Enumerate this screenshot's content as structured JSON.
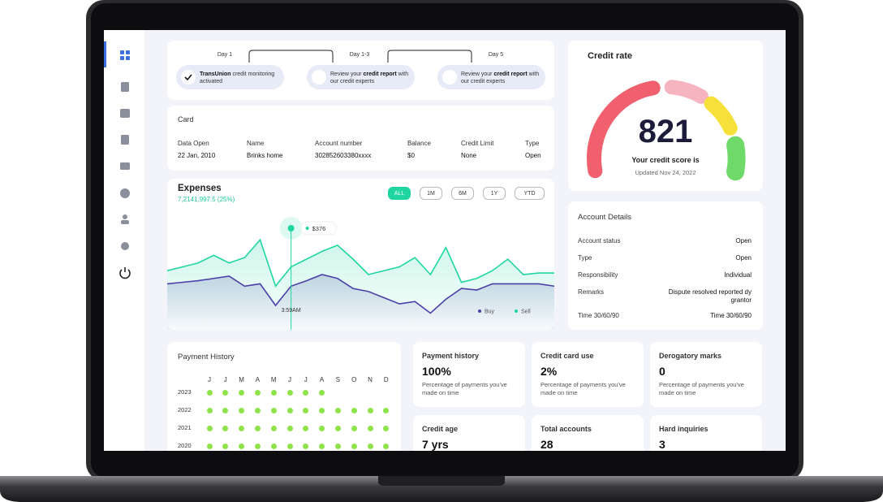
{
  "steps": {
    "days": [
      "Day 1",
      "Day 1-3",
      "Day 5"
    ],
    "items": [
      [
        {
          "text": "TransUnion",
          "bold": true
        },
        {
          "text": " credit monitoring activated"
        }
      ],
      [
        {
          "text": "Review your "
        },
        {
          "text": "credit report",
          "bold": true
        },
        {
          "text": " with our credit experts"
        }
      ],
      [
        {
          "text": "Review your "
        },
        {
          "text": "credit report",
          "bold": true
        },
        {
          "text": " with our credit experts"
        }
      ]
    ]
  },
  "card": {
    "title": "Card",
    "columns": [
      {
        "label": "Data Open",
        "value": "22 Jan, 2010"
      },
      {
        "label": "Name",
        "value": "Brinks home"
      },
      {
        "label": "Account number",
        "value": "302852603380xxxx"
      },
      {
        "label": "Balance",
        "value": "$0"
      },
      {
        "label": "Credit Limit",
        "value": "None"
      },
      {
        "label": "Type",
        "value": "Open"
      }
    ]
  },
  "expenses": {
    "title": "Expenses",
    "subtitle": "7,2141,997.5 (25%)",
    "buttons": [
      "ALL",
      "1M",
      "6M",
      "1Y",
      "YTD"
    ],
    "tooltip_value": "$376",
    "tooltip_time": "3:59AM",
    "series": [
      {
        "name": "Buy",
        "color": "#4b3fa8",
        "values": [
          48,
          50,
          52,
          55,
          58,
          45,
          48,
          20,
          45,
          52,
          60,
          55,
          42,
          38,
          30,
          22,
          25,
          10,
          28,
          42,
          40,
          48,
          48,
          48,
          48,
          45
        ]
      },
      {
        "name": "Sell",
        "color": "#1fd6a0",
        "values": [
          65,
          70,
          75,
          85,
          75,
          82,
          105,
          45,
          70,
          80,
          90,
          98,
          80,
          60,
          65,
          70,
          82,
          60,
          95,
          50,
          55,
          65,
          80,
          60,
          62,
          62
        ]
      }
    ]
  },
  "credit": {
    "title": "Credit rate",
    "score": "821",
    "caption": "Your credit score is",
    "updated": "Updated Nov 24, 2022"
  },
  "account": {
    "title": "Account Details",
    "rows": [
      {
        "label": "Account status",
        "value": "Open"
      },
      {
        "label": "Type",
        "value": "Open"
      },
      {
        "label": "Responsibility",
        "value": "Individual"
      },
      {
        "label": "Remarks",
        "value": "Dispute resolved reported dy grantor"
      },
      {
        "label": "Time 30/60/90",
        "value": "Time 30/60/90"
      }
    ]
  },
  "payment_history": {
    "title": "Payment History",
    "months": [
      "J",
      "J",
      "M",
      "A",
      "M",
      "J",
      "J",
      "A",
      "S",
      "O",
      "N",
      "D"
    ],
    "rows": [
      {
        "year": "2023",
        "paid": 8
      },
      {
        "year": "2022",
        "paid": 12
      },
      {
        "year": "2021",
        "paid": 12
      },
      {
        "year": "2020",
        "paid": 12
      }
    ]
  },
  "tiles": [
    {
      "title": "Payment history",
      "value": "100%",
      "description": "Percentage of payments you've made on time"
    },
    {
      "title": "Credit card use",
      "value": "2%",
      "description": "Percentage of payments you've made on time"
    },
    {
      "title": "Derogatory marks",
      "value": "0",
      "description": "Percentage of payments you've made on time"
    },
    {
      "title": "Credit age",
      "value": "7 yrs"
    },
    {
      "title": "Total accounts",
      "value": "28"
    },
    {
      "title": "Hard inquiries",
      "value": "3"
    }
  ]
}
